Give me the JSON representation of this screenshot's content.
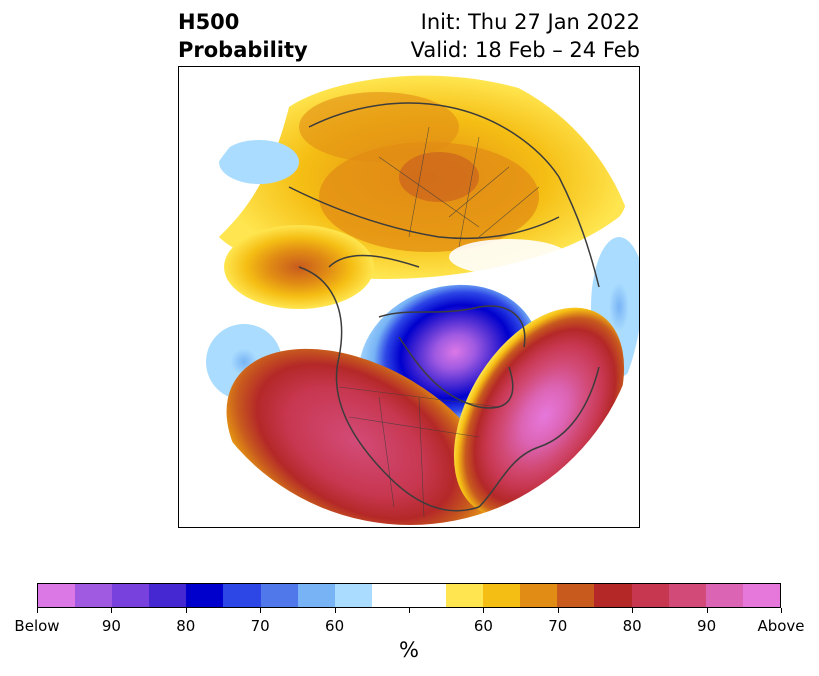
{
  "title": {
    "left_line1": "H500",
    "left_line2": "Probability",
    "right_line1": "Init: Thu 27 Jan 2022",
    "right_line2": "Valid: 18 Feb – 24 Feb"
  },
  "colorbar": {
    "colors": [
      "#dc78e6",
      "#a05ae1",
      "#7840dc",
      "#4628d2",
      "#0000cd",
      "#2d46e6",
      "#5078eb",
      "#78b4f5",
      "#aadcff",
      "#ffffff",
      "#ffffff",
      "#ffe650",
      "#f5be14",
      "#e18c14",
      "#c85a1e",
      "#b42828",
      "#c83750",
      "#d24b78",
      "#dc64b4",
      "#e678dc"
    ],
    "tick_labels": [
      "Below",
      "90",
      "80",
      "70",
      "60",
      "",
      "60",
      "70",
      "80",
      "90",
      "Above"
    ],
    "unit": "%"
  }
}
